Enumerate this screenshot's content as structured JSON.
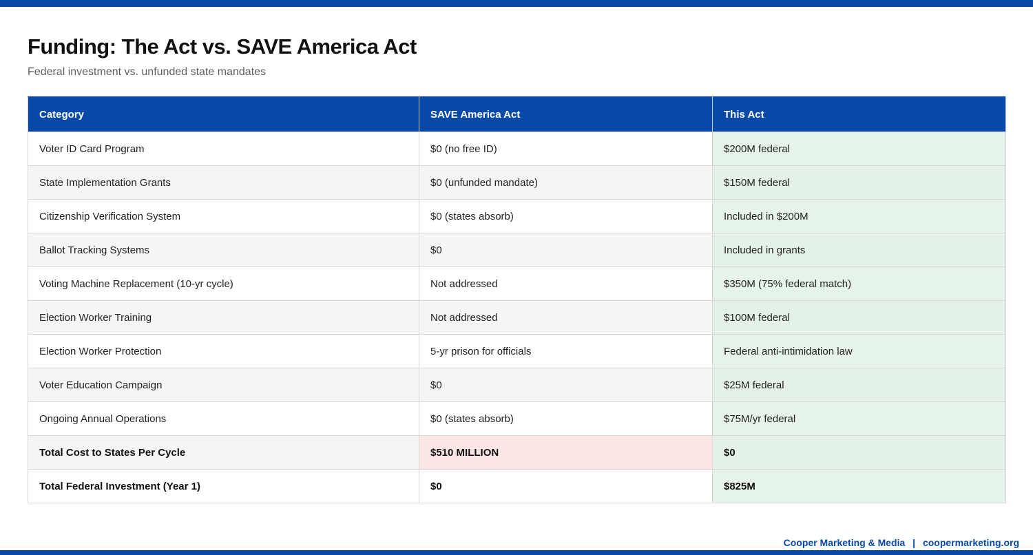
{
  "header": {
    "title": "Funding: The Act vs. SAVE America Act",
    "subtitle": "Federal investment vs. unfunded state mandates"
  },
  "table": {
    "columns": [
      "Category",
      "SAVE America Act",
      "This Act"
    ],
    "rows": [
      {
        "category": "Voter ID Card Program",
        "save_america_act": "$0 (no free ID)",
        "this_act": "$200M federal"
      },
      {
        "category": "State Implementation Grants",
        "save_america_act": "$0 (unfunded mandate)",
        "this_act": "$150M federal"
      },
      {
        "category": "Citizenship Verification System",
        "save_america_act": "$0 (states absorb)",
        "this_act": "Included in $200M"
      },
      {
        "category": "Ballot Tracking Systems",
        "save_america_act": "$0",
        "this_act": "Included in grants"
      },
      {
        "category": "Voting Machine Replacement (10-yr cycle)",
        "save_america_act": "Not addressed",
        "this_act": "$350M (75% federal match)"
      },
      {
        "category": "Election Worker Training",
        "save_america_act": "Not addressed",
        "this_act": "$100M federal"
      },
      {
        "category": "Election Worker Protection",
        "save_america_act": "5-yr prison for officials",
        "this_act": "Federal anti-intimidation law",
        "save_style": "red"
      },
      {
        "category": "Voter Education Campaign",
        "save_america_act": "$0",
        "this_act": "$25M federal"
      },
      {
        "category": "Ongoing Annual Operations",
        "save_america_act": "$0 (states absorb)",
        "this_act": "$75M/yr federal"
      },
      {
        "category": "Total Cost to States Per Cycle",
        "save_america_act": "$510 MILLION",
        "this_act": "$0",
        "bold": true,
        "save_style": "red-highlight",
        "this_style": "green"
      },
      {
        "category": "Total Federal Investment (Year 1)",
        "save_america_act": "$0",
        "this_act": "$825M",
        "bold": true
      }
    ]
  },
  "footer": {
    "brand": "Cooper Marketing & Media",
    "separator": "|",
    "url": "coopermarketing.org"
  },
  "colors": {
    "accent_blue": "#0849A8",
    "row_alt_gray": "#f5f5f5",
    "this_act_green_bg": "#e6f3ea",
    "red_text": "#cc2222",
    "red_highlight_bg": "#fbe6e4",
    "green_text": "#1e7a2e"
  }
}
